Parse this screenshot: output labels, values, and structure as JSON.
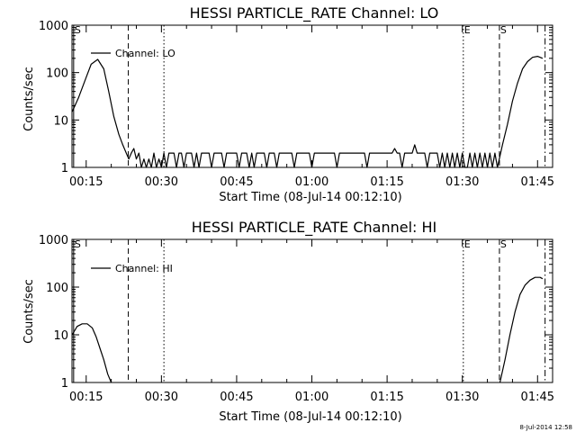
{
  "footer_timestamp": "8-Jul-2014 12:58",
  "chart_data": [
    {
      "type": "line",
      "title": "HESSI PARTICLE_RATE Channel: LO",
      "xlabel": "Start Time (08-Jul-14 00:12:10)",
      "ylabel": "Counts/sec",
      "yscale": "log",
      "ylim": [
        1,
        1000
      ],
      "xlim_minutes": [
        12.17,
        108
      ],
      "xticks": [
        {
          "label": "00:15",
          "min": 15
        },
        {
          "label": "00:30",
          "min": 30
        },
        {
          "label": "00:45",
          "min": 45
        },
        {
          "label": "01:00",
          "min": 60
        },
        {
          "label": "01:15",
          "min": 75
        },
        {
          "label": "01:30",
          "min": 90
        },
        {
          "label": "01:45",
          "min": 105
        }
      ],
      "yticks": [
        {
          "label": "1",
          "value": 1
        },
        {
          "label": "10",
          "value": 10
        },
        {
          "label": "100",
          "value": 100
        },
        {
          "label": "1000",
          "value": 1000
        }
      ],
      "legend": {
        "label": "Channel: LO",
        "position": "top-left"
      },
      "markers": [
        {
          "label": "S",
          "min": 12.5,
          "style": "solid"
        },
        {
          "label": "",
          "min": 23.4,
          "style": "dashed"
        },
        {
          "label": "",
          "min": 30.5,
          "style": "dotted"
        },
        {
          "label": "E",
          "min": 90.2,
          "style": "dotted"
        },
        {
          "label": "S",
          "min": 97.4,
          "style": "dashed"
        },
        {
          "label": "",
          "min": 106.5,
          "style": "dashdot"
        }
      ],
      "series": [
        {
          "name": "Channel: LO",
          "x": [
            12.2,
            13.5,
            15,
            16,
            17.3,
            18.5,
            19.5,
            20.5,
            21.5,
            22.3,
            23,
            23.5,
            24,
            24.5,
            25,
            25.5,
            26,
            26.5,
            27,
            27.5,
            28,
            28.5,
            29,
            29.5,
            30,
            30.5,
            31,
            31.5,
            32,
            32.5,
            33,
            33.5,
            34,
            34.5,
            35,
            35.5,
            36,
            36.5,
            37,
            37.5,
            38,
            38.5,
            39,
            39.5,
            40,
            40.5,
            41,
            41.5,
            42,
            42.5,
            43,
            43.5,
            44,
            44.5,
            45,
            45.5,
            46,
            46.5,
            47,
            47.5,
            48,
            48.5,
            49,
            49.5,
            50,
            50.5,
            51,
            51.5,
            52,
            52.5,
            53,
            53.5,
            54,
            54.5,
            55,
            55.5,
            56,
            56.5,
            57,
            57.5,
            58,
            58.5,
            59,
            59.5,
            60,
            60.5,
            61,
            61.5,
            62,
            62.5,
            63,
            63.5,
            64,
            64.5,
            65,
            65.5,
            66,
            66.5,
            67,
            67.5,
            68,
            68.5,
            69,
            69.5,
            70,
            70.5,
            71,
            71.5,
            72,
            72.5,
            73,
            73.5,
            74,
            74.5,
            75,
            75.5,
            76,
            76.5,
            77,
            77.5,
            78,
            78.5,
            79,
            79.5,
            80,
            80.5,
            81,
            81.5,
            82,
            82.5,
            83,
            83.5,
            84,
            84.5,
            85,
            85.5,
            86,
            86.5,
            87,
            87.5,
            88,
            88.5,
            89,
            89.5,
            90,
            90.5,
            91,
            91.5,
            92,
            92.5,
            93,
            93.5,
            94,
            94.5,
            95,
            95.5,
            96,
            96.5,
            97,
            98,
            99,
            100,
            101,
            102,
            103,
            104,
            105,
            106
          ],
          "values": [
            15,
            30,
            80,
            150,
            190,
            120,
            40,
            12,
            5,
            3,
            2,
            1.5,
            2,
            2.5,
            1.5,
            2,
            1,
            1.5,
            1,
            1.5,
            1,
            2,
            1,
            1.5,
            1,
            2,
            1,
            2,
            2,
            2,
            1,
            2,
            2,
            1,
            2,
            2,
            2,
            1,
            2,
            1,
            2,
            2,
            2,
            2,
            1,
            2,
            2,
            2,
            2,
            1,
            2,
            2,
            2,
            2,
            2,
            1,
            2,
            2,
            2,
            1,
            2,
            1,
            2,
            2,
            2,
            2,
            1,
            2,
            2,
            2,
            1,
            2,
            2,
            2,
            2,
            2,
            2,
            1,
            2,
            2,
            2,
            2,
            2,
            2,
            1,
            2,
            2,
            2,
            2,
            2,
            2,
            2,
            2,
            2,
            1,
            2,
            2,
            2,
            2,
            2,
            2,
            2,
            2,
            2,
            2,
            2,
            1,
            2,
            2,
            2,
            2,
            2,
            2,
            2,
            2,
            2,
            2,
            2.5,
            2,
            2,
            1,
            2,
            2,
            2,
            2,
            3,
            2,
            2,
            2,
            2,
            1,
            2,
            2,
            2,
            2,
            1,
            2,
            1,
            2,
            1,
            2,
            1,
            2,
            1,
            2,
            1,
            1,
            2,
            1,
            2,
            1,
            2,
            1,
            2,
            1,
            2,
            1,
            2,
            1,
            3,
            8,
            25,
            60,
            120,
            170,
            210,
            220,
            200
          ]
        }
      ]
    },
    {
      "type": "line",
      "title": "HESSI PARTICLE_RATE Channel: HI",
      "xlabel": "Start Time (08-Jul-14 00:12:10)",
      "ylabel": "Counts/sec",
      "yscale": "log",
      "ylim": [
        1,
        1000
      ],
      "xlim_minutes": [
        12.17,
        108
      ],
      "xticks": [
        {
          "label": "00:15",
          "min": 15
        },
        {
          "label": "00:30",
          "min": 30
        },
        {
          "label": "00:45",
          "min": 45
        },
        {
          "label": "01:00",
          "min": 60
        },
        {
          "label": "01:15",
          "min": 75
        },
        {
          "label": "01:30",
          "min": 90
        },
        {
          "label": "01:45",
          "min": 105
        }
      ],
      "yticks": [
        {
          "label": "1",
          "value": 1
        },
        {
          "label": "10",
          "value": 10
        },
        {
          "label": "100",
          "value": 100
        },
        {
          "label": "1000",
          "value": 1000
        }
      ],
      "legend": {
        "label": "Channel: HI",
        "position": "top-left"
      },
      "markers": [
        {
          "label": "S",
          "min": 12.5,
          "style": "solid"
        },
        {
          "label": "",
          "min": 23.4,
          "style": "dashed"
        },
        {
          "label": "",
          "min": 30.5,
          "style": "dotted"
        },
        {
          "label": "E",
          "min": 90.2,
          "style": "dotted"
        },
        {
          "label": "S",
          "min": 97.4,
          "style": "dashed"
        },
        {
          "label": "",
          "min": 106.5,
          "style": "dashdot"
        }
      ],
      "series": [
        {
          "name": "Channel: HI",
          "x": [
            12.2,
            13.2,
            14.2,
            15.2,
            16.2,
            17,
            17.8,
            18.5,
            19.3,
            20
          ],
          "values": [
            10,
            15,
            17,
            17,
            14,
            9,
            5,
            3,
            1.5,
            1
          ]
        },
        {
          "name": "Channel: HI",
          "x": [
            97.5,
            98.5,
            99.5,
            100.5,
            101.5,
            102.5,
            103.5,
            104.5,
            105.5,
            106
          ],
          "values": [
            1,
            3,
            10,
            30,
            70,
            110,
            140,
            160,
            160,
            150
          ]
        }
      ]
    }
  ]
}
